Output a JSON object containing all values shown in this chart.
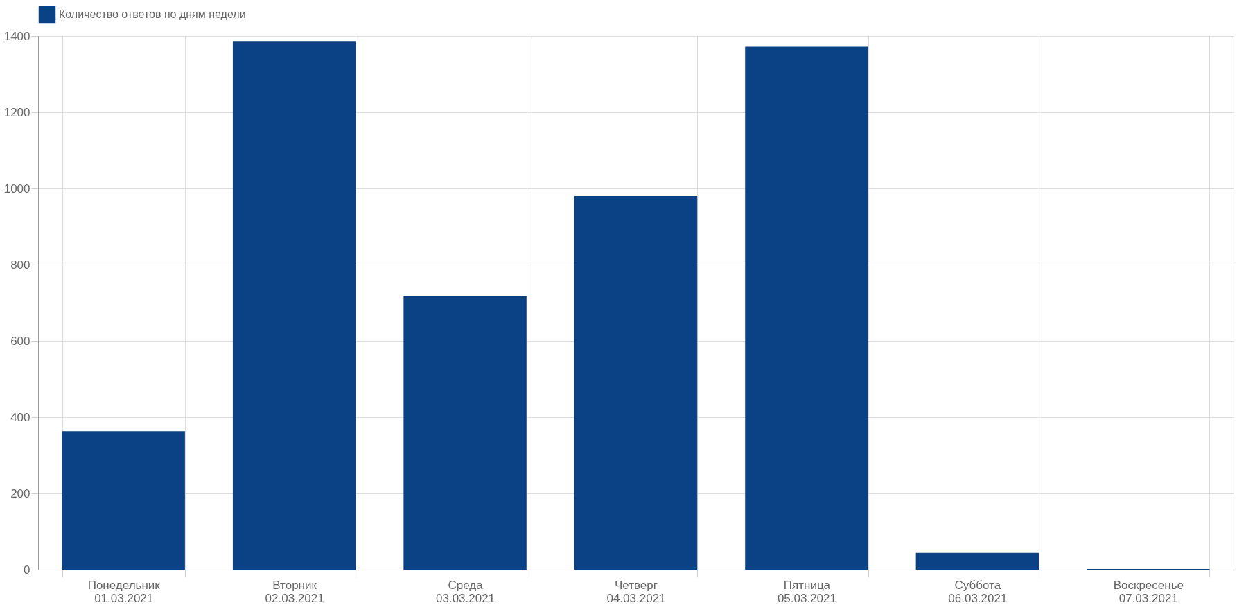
{
  "chart_data": {
    "type": "bar",
    "categories": [
      "Понедельник\n01.03.2021",
      "Вторник\n02.03.2021",
      "Среда\n03.03.2021",
      "Четверг\n04.03.2021",
      "Пятница\n05.03.2021",
      "Суббота\n06.03.2021",
      "Воскресенье\n07.03.2021"
    ],
    "series": [
      {
        "name": "Количество ответов по дням недели",
        "color": "#0b4285",
        "values": [
          363,
          1387,
          718,
          980,
          1372,
          44,
          2
        ]
      }
    ],
    "ylim": [
      0,
      1400
    ],
    "yticks": [
      0,
      200,
      400,
      600,
      800,
      1000,
      1200,
      1400
    ],
    "grid": true,
    "legend": "top"
  }
}
